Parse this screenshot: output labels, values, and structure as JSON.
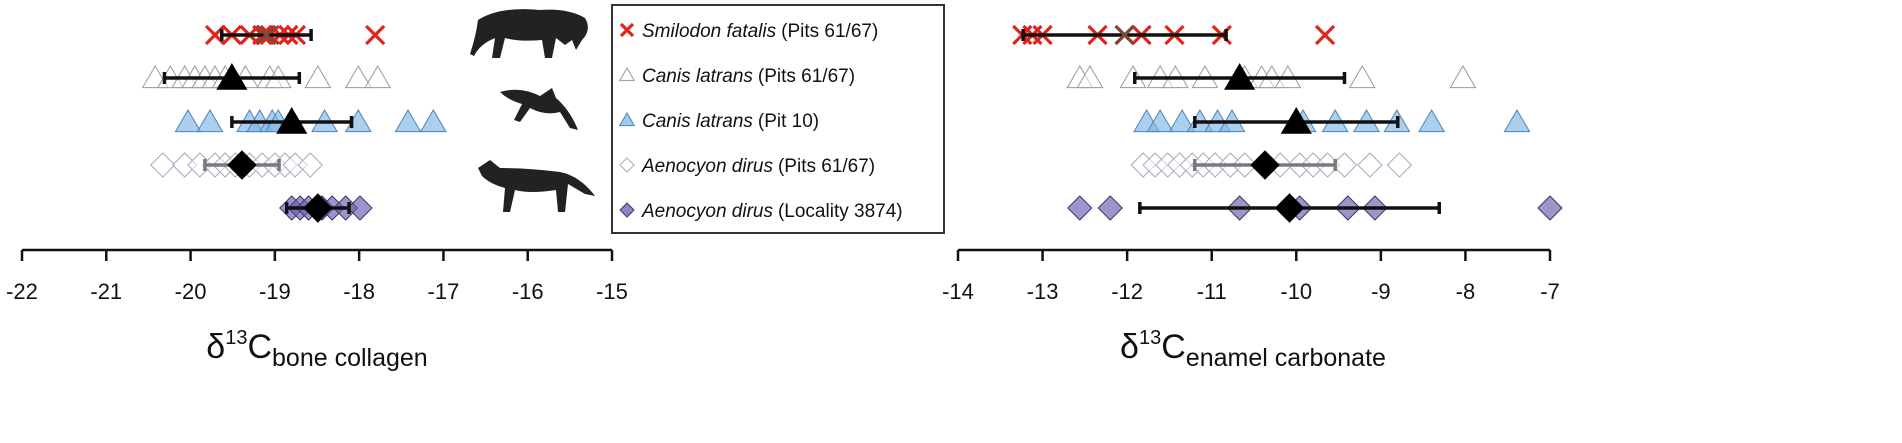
{
  "chart_data": [
    {
      "type": "scatter",
      "xlabel": [
        "δ",
        "13",
        "C",
        "bone collagen"
      ],
      "xlim": [
        -22,
        -15
      ],
      "xticks": [
        -22,
        -21,
        -20,
        -19,
        -18,
        -17,
        -16,
        -15
      ],
      "series": [
        {
          "name": "Smilodon fatalis",
          "group": "(Pits 61/67)",
          "marker": "cross",
          "color": "#e2231a",
          "fill": "none",
          "mean_color": "#7b4a3c",
          "error_color": "#111111",
          "values": [
            -19.71,
            -19.51,
            -19.3,
            -19.15,
            -19.06,
            -18.94,
            -18.84,
            -18.75,
            -17.81
          ],
          "mean": -19.1,
          "sd": 0.53
        },
        {
          "name": "Canis latrans",
          "group": "(Pits 61/67)",
          "marker": "triangle",
          "color": "#9a9a9a",
          "fill": "#ffffff",
          "mean_color": "#000000",
          "error_color": "#111111",
          "values": [
            -20.42,
            -20.24,
            -20.07,
            -19.95,
            -19.83,
            -19.71,
            -19.59,
            -19.35,
            -19.06,
            -18.96,
            -18.49,
            -18.01,
            -17.78
          ],
          "mean": -19.51,
          "sd": 0.8
        },
        {
          "name": "Canis latrans",
          "group": "(Pit 10)",
          "marker": "triangle",
          "color": "#4a86bd",
          "fill": "#7fb6e3",
          "mean_color": "#000000",
          "error_color": "#111111",
          "values": [
            -20.03,
            -19.77,
            -19.3,
            -19.18,
            -19.03,
            -18.96,
            -18.41,
            -18.01,
            -17.42,
            -17.12
          ],
          "mean": -18.8,
          "sd": 0.71
        },
        {
          "name": "Aenocyon dirus",
          "group": "(Pits 61/67)",
          "marker": "diamond",
          "color": "#a8a8c0",
          "fill": "#ffffff",
          "mean_color": "#000000",
          "error_color": "#7a7a7a",
          "values": [
            -20.33,
            -20.07,
            -19.89,
            -19.71,
            -19.59,
            -19.47,
            -19.3,
            -19.15,
            -19.0,
            -18.88,
            -18.76,
            -18.58
          ],
          "mean": -19.39,
          "sd": 0.44
        },
        {
          "name": "Aenocyon dirus",
          "group": "(Locality 3874)",
          "marker": "diamond",
          "color": "#3d3470",
          "fill": "#6b5cae",
          "mean_color": "#000000",
          "error_color": "#111111",
          "values": [
            -18.8,
            -18.7,
            -18.6,
            -18.44,
            -18.32,
            -18.16,
            -17.99
          ],
          "mean": -18.49,
          "sd": 0.37
        }
      ]
    },
    {
      "type": "scatter",
      "xlabel": [
        "δ",
        "13",
        "C",
        "enamel carbonate"
      ],
      "xlim": [
        -14,
        -7
      ],
      "xticks": [
        -14,
        -13,
        -12,
        -11,
        -10,
        -9,
        -8,
        -7
      ],
      "series": [
        {
          "marker": "cross",
          "color": "#e2231a",
          "fill": "none",
          "mean_color": "#7b4a3c",
          "error_color": "#111111",
          "values": [
            -13.24,
            -13.12,
            -13.0,
            -12.35,
            -12.03,
            -11.83,
            -11.44,
            -10.88,
            -9.66
          ],
          "mean": -12.03,
          "sd": 1.2
        },
        {
          "marker": "triangle",
          "color": "#9a9a9a",
          "fill": "#ffffff",
          "mean_color": "#000000",
          "error_color": "#111111",
          "values": [
            -12.56,
            -12.44,
            -11.93,
            -11.61,
            -11.43,
            -11.08,
            -10.61,
            -10.41,
            -10.29,
            -10.1,
            -9.22,
            -8.03
          ],
          "mean": -10.67,
          "sd": 1.24
        },
        {
          "marker": "triangle",
          "color": "#4a86bd",
          "fill": "#7fb6e3",
          "mean_color": "#000000",
          "error_color": "#111111",
          "values": [
            -11.77,
            -11.61,
            -11.35,
            -11.14,
            -10.93,
            -10.76,
            -9.92,
            -9.54,
            -9.17,
            -8.81,
            -8.4,
            -7.39
          ],
          "mean": -10.0,
          "sd": 1.2
        },
        {
          "marker": "diamond",
          "color": "#a8a8c0",
          "fill": "#ffffff",
          "mean_color": "#000000",
          "error_color": "#7a7a7a",
          "values": [
            -11.81,
            -11.67,
            -11.52,
            -11.38,
            -11.23,
            -11.1,
            -10.96,
            -10.78,
            -10.61,
            -10.37,
            -10.19,
            -9.96,
            -9.8,
            -9.63,
            -9.43,
            -9.13,
            -8.78
          ],
          "mean": -10.37,
          "sd": 0.83
        },
        {
          "marker": "diamond",
          "color": "#3d3470",
          "fill": "#6b5cae",
          "mean_color": "#000000",
          "error_color": "#111111",
          "values": [
            -12.56,
            -12.2,
            -10.67,
            -9.96,
            -9.39,
            -9.07,
            -7.0
          ],
          "mean": -10.08,
          "sd": 1.77
        }
      ]
    }
  ]
}
